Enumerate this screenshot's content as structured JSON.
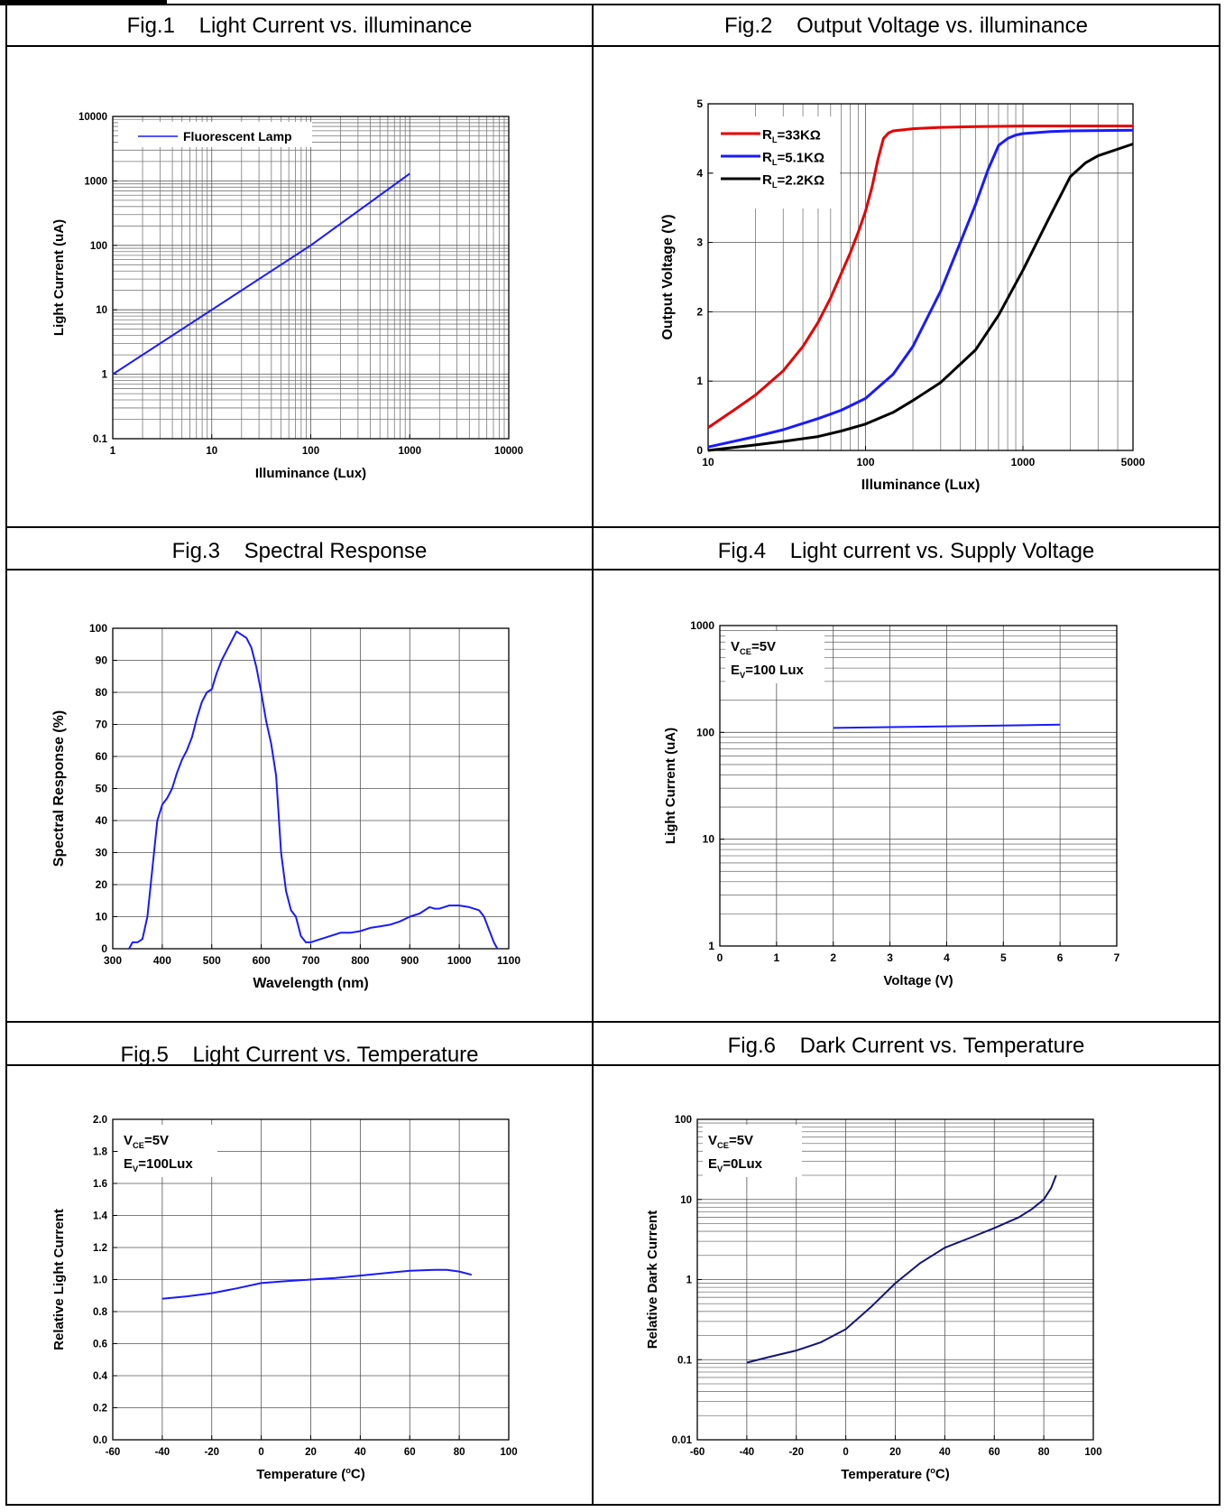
{
  "headers": [
    "Fig.1    Light Current vs. illuminance",
    "Fig.2    Output Voltage vs. illuminance",
    "Fig.3    Spectral Response",
    "Fig.4    Light current vs. Supply Voltage",
    "Fig.5    Light Current vs. Temperature",
    "Fig.6    Dark Current vs. Temperature"
  ],
  "chart_data": [
    {
      "id": "fig1",
      "type": "line",
      "xlabel": "Illuminance (Lux)",
      "ylabel": "Light Current (uA)",
      "xscale": "log",
      "yscale": "log",
      "xlim": [
        1,
        10000
      ],
      "ylim": [
        0.1,
        10000
      ],
      "xticks": [
        1,
        10,
        100,
        1000,
        10000
      ],
      "xtick_labels": [
        "1",
        "10",
        "100",
        "1000",
        "10000"
      ],
      "yticks": [
        0.1,
        1,
        10,
        100,
        1000,
        10000
      ],
      "ytick_labels": [
        "0.1",
        "1",
        "10",
        "100",
        "1000",
        "10000"
      ],
      "grid": true,
      "legend": "top-left",
      "series": [
        {
          "name": "Fluorescent Lamp",
          "color": "#1a1aff",
          "x": [
            1,
            10,
            100,
            1000
          ],
          "y": [
            1,
            10,
            100,
            1300
          ]
        }
      ]
    },
    {
      "id": "fig2",
      "type": "line",
      "xlabel": "Illuminance (Lux)",
      "ylabel": "Output Voltage (V)",
      "xscale": "log",
      "yscale": "linear",
      "xlim": [
        10,
        5000
      ],
      "ylim": [
        0,
        5
      ],
      "xticks": [
        10,
        100,
        1000,
        5000
      ],
      "xtick_labels": [
        "10",
        "100",
        "1000",
        "5000"
      ],
      "yticks": [
        0,
        1,
        2,
        3,
        4,
        5
      ],
      "ytick_labels": [
        "0",
        "1",
        "2",
        "3",
        "4",
        "5"
      ],
      "grid": true,
      "legend": "top-left",
      "series": [
        {
          "name": "R_L=33KΩ",
          "name_main": "R",
          "name_sub": "L",
          "name_rest": "=33KΩ",
          "color": "#e60000",
          "x": [
            10,
            15,
            20,
            30,
            40,
            50,
            60,
            70,
            80,
            90,
            100,
            110,
            120,
            130,
            140,
            150,
            200,
            300,
            500,
            1000,
            5000
          ],
          "y": [
            0.33,
            0.6,
            0.8,
            1.15,
            1.5,
            1.85,
            2.2,
            2.55,
            2.85,
            3.15,
            3.45,
            3.8,
            4.2,
            4.5,
            4.58,
            4.61,
            4.64,
            4.66,
            4.67,
            4.68,
            4.68
          ]
        },
        {
          "name": "R_L=5.1KΩ",
          "name_main": "R",
          "name_sub": "L",
          "name_rest": "=5.1KΩ",
          "color": "#1a1aff",
          "x": [
            10,
            20,
            30,
            50,
            70,
            100,
            150,
            200,
            300,
            400,
            500,
            600,
            700,
            800,
            900,
            1000,
            1500,
            2000,
            5000
          ],
          "y": [
            0.05,
            0.2,
            0.3,
            0.46,
            0.58,
            0.75,
            1.1,
            1.5,
            2.3,
            3.0,
            3.55,
            4.05,
            4.4,
            4.5,
            4.55,
            4.57,
            4.6,
            4.61,
            4.62
          ]
        },
        {
          "name": "R_L=2.2KΩ",
          "name_main": "R",
          "name_sub": "L",
          "name_rest": "=2.2KΩ",
          "color": "#000000",
          "x": [
            10,
            20,
            30,
            50,
            70,
            100,
            150,
            200,
            300,
            500,
            700,
            1000,
            1500,
            2000,
            2500,
            3000,
            5000
          ],
          "y": [
            0.0,
            0.08,
            0.13,
            0.2,
            0.28,
            0.38,
            0.55,
            0.72,
            0.98,
            1.45,
            1.95,
            2.6,
            3.4,
            3.95,
            4.15,
            4.25,
            4.42
          ]
        }
      ]
    },
    {
      "id": "fig3",
      "type": "line",
      "xlabel": "Wavelength (nm)",
      "ylabel": "Spectral Response (%)",
      "xscale": "linear",
      "yscale": "linear",
      "xlim": [
        300,
        1100
      ],
      "ylim": [
        0,
        100
      ],
      "xticks": [
        300,
        400,
        500,
        600,
        700,
        800,
        900,
        1000,
        1100
      ],
      "xtick_labels": [
        "300",
        "400",
        "500",
        "600",
        "700",
        "800",
        "900",
        "1000",
        "1100"
      ],
      "yticks": [
        0,
        10,
        20,
        30,
        40,
        50,
        60,
        70,
        80,
        90,
        100
      ],
      "ytick_labels": [
        "0",
        "10",
        "20",
        "30",
        "40",
        "50",
        "60",
        "70",
        "80",
        "90",
        "100"
      ],
      "grid": true,
      "series": [
        {
          "color": "#1a1aff",
          "x": [
            333,
            340,
            350,
            360,
            370,
            380,
            390,
            400,
            410,
            420,
            430,
            440,
            450,
            460,
            470,
            480,
            490,
            500,
            510,
            520,
            530,
            540,
            550,
            560,
            570,
            580,
            590,
            600,
            610,
            620,
            630,
            640,
            650,
            660,
            670,
            680,
            690,
            700,
            710,
            720,
            740,
            760,
            780,
            800,
            820,
            840,
            860,
            880,
            900,
            920,
            940,
            950,
            960,
            980,
            1000,
            1020,
            1040,
            1050,
            1060,
            1070,
            1077
          ],
          "y": [
            0,
            2,
            2,
            3,
            10,
            25,
            40,
            45,
            47,
            50,
            55,
            59,
            62,
            66,
            72,
            77,
            80,
            81,
            86,
            90,
            93,
            96,
            99,
            98,
            97,
            94,
            88,
            80,
            71,
            64,
            54,
            30,
            18,
            12,
            10,
            4,
            2,
            2,
            2.5,
            3,
            4,
            5,
            5,
            5.5,
            6.5,
            7,
            7.5,
            8.5,
            10,
            11,
            13,
            12.5,
            12.5,
            13.5,
            13.5,
            13,
            12,
            10,
            6,
            2,
            0
          ]
        }
      ]
    },
    {
      "id": "fig4",
      "type": "line",
      "xlabel": "Voltage (V)",
      "ylabel": "Light Current (uA)",
      "xscale": "linear",
      "yscale": "log",
      "xlim": [
        0,
        7
      ],
      "ylim": [
        1,
        1000
      ],
      "xticks": [
        0,
        1,
        2,
        3,
        4,
        5,
        6,
        7
      ],
      "xtick_labels": [
        "0",
        "1",
        "2",
        "3",
        "4",
        "5",
        "6",
        "7"
      ],
      "yticks": [
        1,
        10,
        100,
        1000
      ],
      "ytick_labels": [
        "1",
        "10",
        "100",
        "1000"
      ],
      "grid": true,
      "annotation_lines": [
        {
          "main": "V",
          "sub": "CE",
          "rest": "=5V"
        },
        {
          "main": "E",
          "sub": "V",
          "rest": "=100 Lux"
        }
      ],
      "series": [
        {
          "color": "#1a1aff",
          "x": [
            2,
            3,
            4,
            5,
            6
          ],
          "y": [
            110,
            112,
            114,
            116,
            118
          ]
        }
      ]
    },
    {
      "id": "fig5",
      "type": "line",
      "xlabel": "Temperature (",
      "xlabel_sup": "o",
      "xlabel_rest": "C)",
      "ylabel": "Relative Light Current",
      "xscale": "linear",
      "yscale": "linear",
      "xlim": [
        -60,
        100
      ],
      "ylim": [
        0.0,
        2.0
      ],
      "xticks": [
        -60,
        -40,
        -20,
        0,
        20,
        40,
        60,
        80,
        100
      ],
      "xtick_labels": [
        "-60",
        "-40",
        "-20",
        "0",
        "20",
        "40",
        "60",
        "80",
        "100"
      ],
      "yticks": [
        0,
        0.2,
        0.4,
        0.6,
        0.8,
        1.0,
        1.2,
        1.4,
        1.6,
        1.8,
        2.0
      ],
      "ytick_labels": [
        "0.0",
        "0.2",
        "0.4",
        "0.6",
        "0.8",
        "1.0",
        "1.2",
        "1.4",
        "1.6",
        "1.8",
        "2.0"
      ],
      "grid": true,
      "annotation_lines": [
        {
          "main": "V",
          "sub": "CE",
          "rest": "=5V"
        },
        {
          "main": "E",
          "sub": "V",
          "rest": "=100Lux"
        }
      ],
      "series": [
        {
          "color": "#1a1aff",
          "x": [
            -40,
            -30,
            -20,
            -10,
            0,
            10,
            20,
            30,
            40,
            50,
            60,
            70,
            75,
            80,
            85
          ],
          "y": [
            0.88,
            0.895,
            0.915,
            0.945,
            0.978,
            0.99,
            1.0,
            1.01,
            1.025,
            1.04,
            1.055,
            1.06,
            1.06,
            1.05,
            1.03
          ]
        }
      ]
    },
    {
      "id": "fig6",
      "type": "line",
      "xlabel": "Temperature (",
      "xlabel_sup": "o",
      "xlabel_rest": "C)",
      "ylabel": "Relative Dark Current",
      "xscale": "linear",
      "yscale": "log",
      "xlim": [
        -60,
        100
      ],
      "ylim": [
        0.01,
        100
      ],
      "xticks": [
        -60,
        -40,
        -20,
        0,
        20,
        40,
        60,
        80,
        100
      ],
      "xtick_labels": [
        "-60",
        "-40",
        "-20",
        "0",
        "20",
        "40",
        "60",
        "80",
        "100"
      ],
      "yticks": [
        0.01,
        0.1,
        1,
        10,
        100
      ],
      "ytick_labels": [
        "0.01",
        "0.1",
        "1",
        "10",
        "100"
      ],
      "grid": true,
      "annotation_lines": [
        {
          "main": "V",
          "sub": "CE",
          "rest": "=5V"
        },
        {
          "main": "E",
          "sub": "V",
          "rest": "=0Lux"
        }
      ],
      "series": [
        {
          "color": "#14147a",
          "x": [
            -40,
            -30,
            -20,
            -10,
            0,
            10,
            20,
            30,
            40,
            50,
            60,
            70,
            75,
            80,
            83,
            85
          ],
          "y": [
            0.092,
            0.11,
            0.13,
            0.165,
            0.24,
            0.45,
            0.9,
            1.6,
            2.5,
            3.3,
            4.4,
            6.0,
            7.5,
            10,
            14,
            20
          ]
        }
      ]
    }
  ]
}
